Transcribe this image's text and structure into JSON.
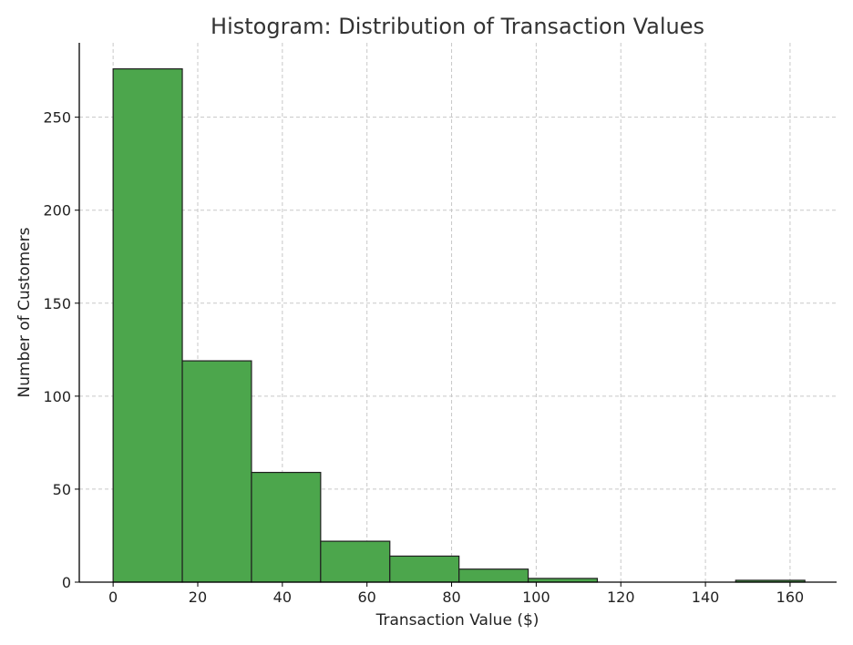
{
  "chart_data": {
    "type": "bar",
    "title": "Histogram: Distribution of Transaction Values",
    "xlabel": "Transaction Value ($)",
    "ylabel": "Number of Customers",
    "xlim": [
      -8,
      171
    ],
    "ylim": [
      0,
      290
    ],
    "xticks": [
      0,
      20,
      40,
      60,
      80,
      100,
      120,
      140,
      160
    ],
    "yticks": [
      0,
      50,
      100,
      150,
      200,
      250
    ],
    "grid": true,
    "bar_color": "#4ca64c",
    "bins": [
      {
        "x0": 0.0,
        "x1": 16.35,
        "count": 276
      },
      {
        "x0": 16.35,
        "x1": 32.7,
        "count": 119
      },
      {
        "x0": 32.7,
        "x1": 49.05,
        "count": 59
      },
      {
        "x0": 49.05,
        "x1": 65.4,
        "count": 22
      },
      {
        "x0": 65.4,
        "x1": 81.75,
        "count": 14
      },
      {
        "x0": 81.75,
        "x1": 98.1,
        "count": 7
      },
      {
        "x0": 98.1,
        "x1": 114.45,
        "count": 2
      },
      {
        "x0": 114.45,
        "x1": 130.8,
        "count": 0
      },
      {
        "x0": 130.8,
        "x1": 147.15,
        "count": 0
      },
      {
        "x0": 147.15,
        "x1": 163.5,
        "count": 1
      }
    ]
  }
}
